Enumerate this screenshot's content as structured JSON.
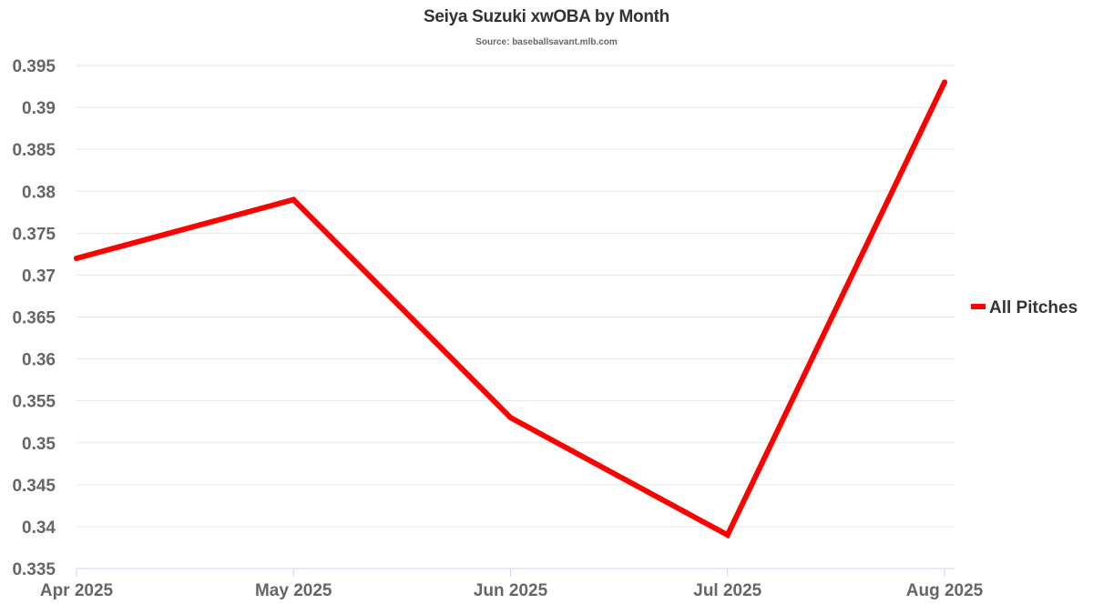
{
  "chart_data": {
    "type": "line",
    "title": "Seiya Suzuki xwOBA by Month",
    "subtitle": "Source: baseballsavant.mlb.com",
    "xlabel": "",
    "ylabel": "",
    "categories": [
      "Apr 2025",
      "May 2025",
      "Jun 2025",
      "Jul 2025",
      "Aug 2025"
    ],
    "series": [
      {
        "name": "All Pitches",
        "color": "#ff0000",
        "values": [
          0.372,
          0.379,
          0.353,
          0.339,
          0.393
        ]
      }
    ],
    "ylim": [
      0.335,
      0.395
    ],
    "yticks": [
      "0.335",
      "0.34",
      "0.345",
      "0.35",
      "0.355",
      "0.36",
      "0.365",
      "0.37",
      "0.375",
      "0.38",
      "0.385",
      "0.39",
      "0.395"
    ],
    "grid": true,
    "legend_position": "right"
  }
}
